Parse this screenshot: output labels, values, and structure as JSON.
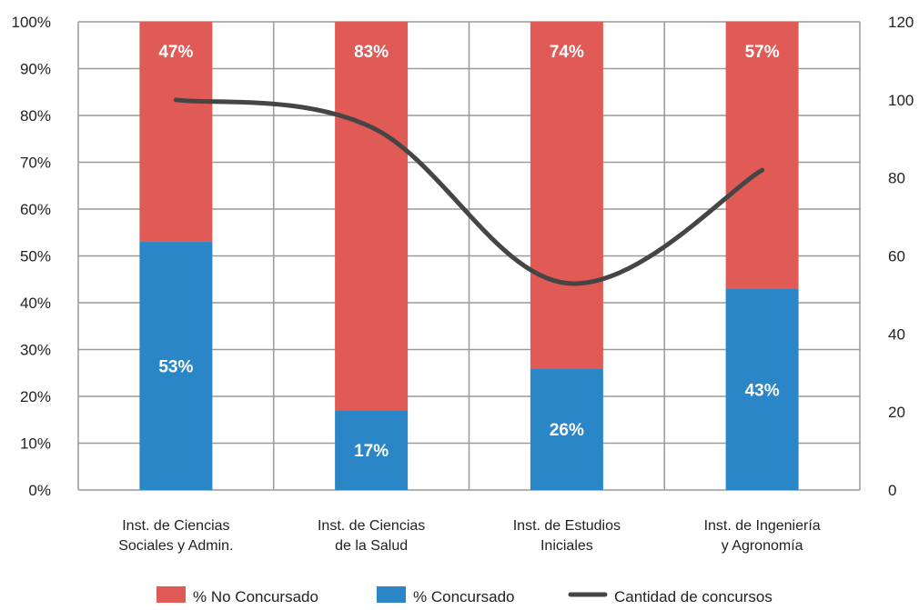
{
  "chart_data": {
    "type": "bar",
    "stacked": true,
    "grid": true,
    "legend_position": "bottom",
    "categories": [
      [
        "Inst. de Ciencias",
        "Sociales y Admin."
      ],
      [
        "Inst. de Ciencias",
        "de la Salud"
      ],
      [
        "Inst. de Estudios",
        "Iniciales"
      ],
      [
        "Inst. de Ingeniería",
        "y Agronomía"
      ]
    ],
    "series": [
      {
        "name": "% Concursado",
        "type": "bar",
        "axis": "left",
        "color": "#2a86c7",
        "values": [
          53,
          17,
          26,
          43
        ],
        "labels": [
          "53%",
          "17%",
          "26%",
          "43%"
        ]
      },
      {
        "name": "% No Concursado",
        "type": "bar",
        "axis": "left",
        "color": "#e05a56",
        "values": [
          47,
          83,
          74,
          57
        ],
        "labels": [
          "47%",
          "83%",
          "74%",
          "57%"
        ]
      },
      {
        "name": "Cantidad de concursos",
        "type": "line",
        "axis": "right",
        "color": "#454545",
        "values": [
          100,
          93,
          53,
          82
        ]
      }
    ],
    "y_left": {
      "ylim": [
        0,
        100
      ],
      "ticks": [
        "0%",
        "10%",
        "20%",
        "30%",
        "40%",
        "50%",
        "60%",
        "70%",
        "80%",
        "90%",
        "100%"
      ]
    },
    "y_right": {
      "ylim": [
        0,
        120
      ],
      "ticks": [
        "0",
        "20",
        "40",
        "60",
        "80",
        "100",
        "120"
      ]
    },
    "legend_order": [
      "% No Concursado",
      "% Concursado",
      "Cantidad de concursos"
    ]
  }
}
